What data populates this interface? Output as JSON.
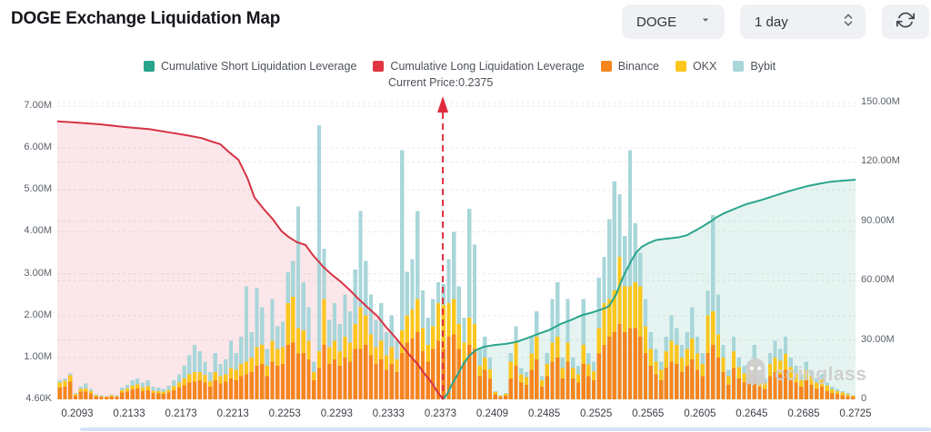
{
  "header": {
    "title": "DOGE Exchange Liquidation Map",
    "coin_select": {
      "value": "DOGE"
    },
    "interval_select": {
      "value": "1 day"
    }
  },
  "legend": {
    "items": [
      {
        "label": "Cumulative Short Liquidation Leverage",
        "color": "#2aa58c"
      },
      {
        "label": "Cumulative Long Liquidation Leverage",
        "color": "#e23642"
      },
      {
        "label": "Binance",
        "color": "#f6851f"
      },
      {
        "label": "OKX",
        "color": "#fcc61d"
      },
      {
        "label": "Bybit",
        "color": "#a8d6d9"
      }
    ]
  },
  "watermark": {
    "text": "coinglass"
  },
  "chart_data": {
    "type": "bar+line",
    "title": "DOGE Exchange Liquidation Map",
    "current_price": {
      "label": "Current Price:0.2375",
      "value": 0.2375,
      "frac": 0.483,
      "color": "#e12b3d"
    },
    "grid": {
      "color": "#eaeaea",
      "dash": "3 3"
    },
    "x_axis": {
      "labels": [
        "0.2093",
        "0.2133",
        "0.2173",
        "0.2213",
        "0.2253",
        "0.2293",
        "0.2333",
        "0.2373",
        "0.2409",
        "0.2485",
        "0.2525",
        "0.2565",
        "0.2605",
        "0.2645",
        "0.2685",
        "0.2725"
      ],
      "first_frac": 0.025,
      "step_frac": 0.065
    },
    "left_axis": {
      "unit": "M",
      "max": 7,
      "ticks": [
        {
          "label": "7.00M",
          "value": 7
        },
        {
          "label": "6.00M",
          "value": 6
        },
        {
          "label": "5.00M",
          "value": 5
        },
        {
          "label": "4.00M",
          "value": 4
        },
        {
          "label": "3.00M",
          "value": 3
        },
        {
          "label": "2.00M",
          "value": 2
        },
        {
          "label": "1.00M",
          "value": 1
        },
        {
          "label": "4.60K",
          "value": 0
        }
      ]
    },
    "right_axis": {
      "unit": "M",
      "max": 150,
      "ticks": [
        {
          "label": "150.00M",
          "value": 150
        },
        {
          "label": "120.00M",
          "value": 120
        },
        {
          "label": "90.00M",
          "value": 90
        },
        {
          "label": "60.00M",
          "value": 60
        },
        {
          "label": "30.00M",
          "value": 30
        },
        {
          "label": "0",
          "value": 0
        }
      ]
    },
    "bars": {
      "axis": "left",
      "unit": "M",
      "series_order": [
        "Binance",
        "OKX",
        "Bybit"
      ],
      "colors": [
        "#f6851f",
        "#fcc61d",
        "#a8d6d9"
      ],
      "values": [
        [
          0.28,
          0.12,
          0.05
        ],
        [
          0.3,
          0.14,
          0.06
        ],
        [
          0.42,
          0.15,
          0.05
        ],
        [
          0.09,
          0.04,
          0.02
        ],
        [
          0.18,
          0.07,
          0.05
        ],
        [
          0.18,
          0.08,
          0.12
        ],
        [
          0.14,
          0.06,
          0.05
        ],
        [
          0.07,
          0.03,
          0.02
        ],
        [
          0.06,
          0.02,
          0.02
        ],
        [
          0.05,
          0.02,
          0.01
        ],
        [
          0.07,
          0.03,
          0.02
        ],
        [
          0.06,
          0.02,
          0.02
        ],
        [
          0.16,
          0.06,
          0.06
        ],
        [
          0.18,
          0.08,
          0.09
        ],
        [
          0.24,
          0.09,
          0.12
        ],
        [
          0.26,
          0.1,
          0.14
        ],
        [
          0.2,
          0.08,
          0.12
        ],
        [
          0.22,
          0.09,
          0.14
        ],
        [
          0.15,
          0.06,
          0.09
        ],
        [
          0.14,
          0.06,
          0.08
        ],
        [
          0.13,
          0.05,
          0.07
        ],
        [
          0.16,
          0.07,
          0.09
        ],
        [
          0.22,
          0.09,
          0.14
        ],
        [
          0.28,
          0.12,
          0.2
        ],
        [
          0.34,
          0.16,
          0.3
        ],
        [
          0.4,
          0.2,
          0.45
        ],
        [
          0.42,
          0.23,
          0.65
        ],
        [
          0.45,
          0.2,
          0.5
        ],
        [
          0.4,
          0.18,
          0.32
        ],
        [
          0.3,
          0.13,
          0.22
        ],
        [
          0.45,
          0.2,
          0.45
        ],
        [
          0.38,
          0.17,
          0.3
        ],
        [
          0.42,
          0.18,
          0.35
        ],
        [
          0.5,
          0.25,
          0.65
        ],
        [
          0.45,
          0.25,
          0.4
        ],
        [
          0.55,
          0.3,
          0.65
        ],
        [
          0.6,
          0.3,
          1.8
        ],
        [
          0.65,
          0.35,
          0.6
        ],
        [
          0.8,
          0.45,
          1.4
        ],
        [
          0.85,
          0.45,
          0.9
        ],
        [
          0.55,
          0.25,
          0.4
        ],
        [
          0.9,
          0.5,
          1.0
        ],
        [
          0.8,
          0.4,
          0.55
        ],
        [
          0.85,
          0.4,
          0.6
        ],
        [
          1.3,
          1.0,
          0.75
        ],
        [
          1.35,
          1.1,
          0.85
        ],
        [
          1.1,
          0.6,
          2.9
        ],
        [
          1.1,
          0.55,
          1.15
        ],
        [
          0.95,
          0.45,
          0.8
        ],
        [
          0.45,
          0.2,
          0.25
        ],
        [
          0.75,
          0.4,
          5.4
        ],
        [
          1.3,
          1.1,
          1.2
        ],
        [
          0.85,
          0.4,
          0.65
        ],
        [
          0.95,
          0.45,
          0.9
        ],
        [
          0.8,
          0.35,
          0.65
        ],
        [
          1.0,
          0.5,
          1.0
        ],
        [
          0.9,
          0.45,
          0.75
        ],
        [
          1.2,
          0.6,
          1.3
        ],
        [
          1.2,
          1.0,
          2.3
        ],
        [
          1.3,
          0.7,
          1.3
        ],
        [
          1.05,
          0.5,
          0.95
        ],
        [
          0.85,
          0.4,
          0.65
        ],
        [
          0.95,
          0.45,
          0.9
        ],
        [
          0.7,
          0.35,
          0.55
        ],
        [
          0.85,
          0.4,
          0.75
        ],
        [
          0.65,
          0.3,
          0.45
        ],
        [
          1.1,
          0.55,
          4.3
        ],
        [
          1.35,
          0.65,
          1.05
        ],
        [
          1.45,
          0.7,
          1.2
        ],
        [
          1.6,
          0.8,
          2.1
        ],
        [
          1.15,
          0.55,
          0.9
        ],
        [
          0.9,
          0.4,
          0.65
        ],
        [
          1.2,
          0.55,
          0.65
        ],
        [
          1.4,
          0.9,
          0.5
        ],
        [
          1.2,
          1.05,
          0.5
        ],
        [
          1.5,
          0.8,
          1.05
        ],
        [
          1.55,
          0.85,
          1.6
        ],
        [
          1.2,
          0.6,
          0.9
        ],
        [
          0.9,
          0.45,
          0.6
        ],
        [
          1.3,
          0.65,
          2.6
        ],
        [
          1.2,
          0.6,
          1.9
        ],
        [
          0.55,
          0.25,
          0.4
        ],
        [
          0.7,
          0.3,
          0.5
        ],
        [
          0.5,
          0.22,
          0.28
        ],
        [
          0.12,
          0.05,
          0.03
        ],
        [
          0.06,
          0.03,
          0.01
        ],
        [
          0.09,
          0.04,
          0.02
        ],
        [
          0.5,
          0.4,
          0.2
        ],
        [
          0.8,
          0.55,
          0.4
        ],
        [
          0.4,
          0.2,
          0.15
        ],
        [
          0.35,
          0.18,
          0.12
        ],
        [
          0.7,
          0.4,
          0.4
        ],
        [
          0.95,
          0.55,
          0.6
        ],
        [
          0.3,
          0.15,
          0.1
        ],
        [
          0.55,
          0.3,
          0.25
        ],
        [
          0.9,
          0.45,
          1.05
        ],
        [
          1.0,
          0.5,
          1.3
        ],
        [
          0.5,
          0.25,
          0.25
        ],
        [
          0.9,
          0.45,
          1.05
        ],
        [
          0.5,
          0.25,
          0.25
        ],
        [
          0.4,
          0.2,
          0.2
        ],
        [
          0.85,
          0.45,
          1.1
        ],
        [
          0.55,
          0.28,
          0.27
        ],
        [
          0.45,
          0.22,
          0.23
        ],
        [
          1.1,
          0.6,
          1.2
        ],
        [
          1.3,
          1.0,
          1.1
        ],
        [
          1.5,
          0.9,
          1.9
        ],
        [
          1.6,
          1.0,
          2.6
        ],
        [
          1.8,
          1.6,
          1.5
        ],
        [
          1.6,
          1.1,
          1.2
        ],
        [
          1.7,
          1.0,
          3.25
        ],
        [
          1.7,
          1.1,
          1.4
        ],
        [
          1.5,
          1.2,
          0.8
        ],
        [
          1.1,
          0.65,
          0.65
        ],
        [
          0.8,
          0.4,
          0.4
        ],
        [
          0.6,
          0.3,
          0.3
        ],
        [
          0.45,
          0.25,
          0.2
        ],
        [
          0.75,
          0.4,
          0.35
        ],
        [
          0.9,
          0.5,
          0.6
        ],
        [
          0.85,
          0.45,
          0.4
        ],
        [
          0.65,
          0.35,
          0.3
        ],
        [
          0.8,
          0.4,
          0.4
        ],
        [
          0.95,
          0.5,
          0.75
        ],
        [
          0.7,
          0.4,
          0.4
        ],
        [
          0.55,
          0.3,
          0.25
        ],
        [
          1.1,
          0.9,
          0.6
        ],
        [
          1.3,
          0.8,
          2.3
        ],
        [
          1.0,
          0.55,
          0.95
        ],
        [
          0.65,
          0.35,
          0.3
        ],
        [
          0.35,
          0.2,
          0.15
        ],
        [
          0.75,
          0.4,
          0.35
        ],
        [
          0.5,
          0.27,
          0.23
        ],
        [
          0.4,
          0.22,
          0.18
        ],
        [
          0.45,
          0.25,
          0.2
        ],
        [
          0.6,
          0.3,
          0.4
        ],
        [
          0.3,
          0.16,
          0.14
        ],
        [
          0.25,
          0.14,
          0.11
        ],
        [
          0.55,
          0.3,
          0.25
        ],
        [
          0.65,
          0.35,
          0.4
        ],
        [
          0.6,
          0.32,
          0.28
        ],
        [
          0.7,
          0.38,
          0.42
        ],
        [
          0.5,
          0.27,
          0.23
        ],
        [
          0.4,
          0.22,
          0.18
        ],
        [
          0.3,
          0.16,
          0.14
        ],
        [
          0.45,
          0.25,
          0.2
        ],
        [
          0.35,
          0.2,
          0.15
        ],
        [
          0.25,
          0.15,
          0.1
        ],
        [
          0.3,
          0.18,
          0.12
        ],
        [
          0.2,
          0.12,
          0.08
        ],
        [
          0.15,
          0.09,
          0.06
        ],
        [
          0.13,
          0.07,
          0.05
        ],
        [
          0.1,
          0.06,
          0.04
        ],
        [
          0.08,
          0.04,
          0.03
        ],
        [
          0.06,
          0.03,
          0.01
        ]
      ]
    },
    "long_line": {
      "name": "Cumulative Long Liquidation Leverage",
      "axis": "right",
      "unit": "M",
      "color": "#d63345",
      "fill": "rgba(222,53,73,0.12)",
      "points": [
        [
          0.0,
          140.5
        ],
        [
          0.019,
          140.0
        ],
        [
          0.054,
          139.0
        ],
        [
          0.088,
          137.5
        ],
        [
          0.116,
          136.5
        ],
        [
          0.139,
          135.0
        ],
        [
          0.162,
          133.5
        ],
        [
          0.181,
          132.0
        ],
        [
          0.192,
          130.5
        ],
        [
          0.204,
          129.0
        ],
        [
          0.215,
          125.0
        ],
        [
          0.227,
          121.0
        ],
        [
          0.238,
          112.0
        ],
        [
          0.247,
          102.0
        ],
        [
          0.259,
          96.0
        ],
        [
          0.27,
          91.0
        ],
        [
          0.281,
          85.0
        ],
        [
          0.29,
          82.0
        ],
        [
          0.3,
          79.5
        ],
        [
          0.311,
          78.0
        ],
        [
          0.32,
          73.0
        ],
        [
          0.333,
          67.0
        ],
        [
          0.344,
          63.0
        ],
        [
          0.355,
          59.5
        ],
        [
          0.367,
          55.0
        ],
        [
          0.378,
          50.5
        ],
        [
          0.39,
          46.0
        ],
        [
          0.401,
          42.0
        ],
        [
          0.412,
          36.5
        ],
        [
          0.424,
          31.0
        ],
        [
          0.433,
          26.5
        ],
        [
          0.442,
          22.0
        ],
        [
          0.451,
          18.0
        ],
        [
          0.46,
          13.0
        ],
        [
          0.468,
          9.0
        ],
        [
          0.476,
          4.0
        ],
        [
          0.483,
          0.0
        ]
      ]
    },
    "short_line": {
      "name": "Cumulative Short Liquidation Leverage",
      "axis": "right",
      "unit": "M",
      "color": "#2aa58c",
      "fill": "rgba(42,165,140,0.12)",
      "points": [
        [
          0.483,
          0.0
        ],
        [
          0.489,
          3.0
        ],
        [
          0.495,
          8.0
        ],
        [
          0.502,
          13.0
        ],
        [
          0.509,
          18.0
        ],
        [
          0.516,
          22.0
        ],
        [
          0.525,
          25.0
        ],
        [
          0.534,
          26.5
        ],
        [
          0.548,
          27.5
        ],
        [
          0.561,
          28.0
        ],
        [
          0.575,
          29.0
        ],
        [
          0.589,
          31.0
        ],
        [
          0.602,
          33.0
        ],
        [
          0.616,
          35.0
        ],
        [
          0.63,
          38.0
        ],
        [
          0.643,
          40.0
        ],
        [
          0.657,
          42.5
        ],
        [
          0.671,
          44.0
        ],
        [
          0.682,
          45.5
        ],
        [
          0.691,
          47.0
        ],
        [
          0.7,
          53.0
        ],
        [
          0.709,
          62.0
        ],
        [
          0.719,
          70.0
        ],
        [
          0.725,
          74.0
        ],
        [
          0.732,
          77.0
        ],
        [
          0.741,
          79.0
        ],
        [
          0.75,
          80.5
        ],
        [
          0.76,
          81.0
        ],
        [
          0.771,
          81.5
        ],
        [
          0.78,
          82.0
        ],
        [
          0.789,
          83.0
        ],
        [
          0.798,
          85.0
        ],
        [
          0.807,
          87.0
        ],
        [
          0.817,
          89.5
        ],
        [
          0.826,
          92.0
        ],
        [
          0.835,
          94.0
        ],
        [
          0.844,
          95.5
        ],
        [
          0.853,
          97.0
        ],
        [
          0.862,
          98.5
        ],
        [
          0.871,
          99.5
        ],
        [
          0.88,
          100.5
        ],
        [
          0.892,
          102.0
        ],
        [
          0.903,
          103.5
        ],
        [
          0.915,
          105.0
        ],
        [
          0.928,
          106.5
        ],
        [
          0.942,
          108.0
        ],
        [
          0.955,
          109.0
        ],
        [
          0.969,
          110.0
        ],
        [
          0.983,
          110.5
        ],
        [
          1.0,
          111.0
        ]
      ]
    }
  }
}
